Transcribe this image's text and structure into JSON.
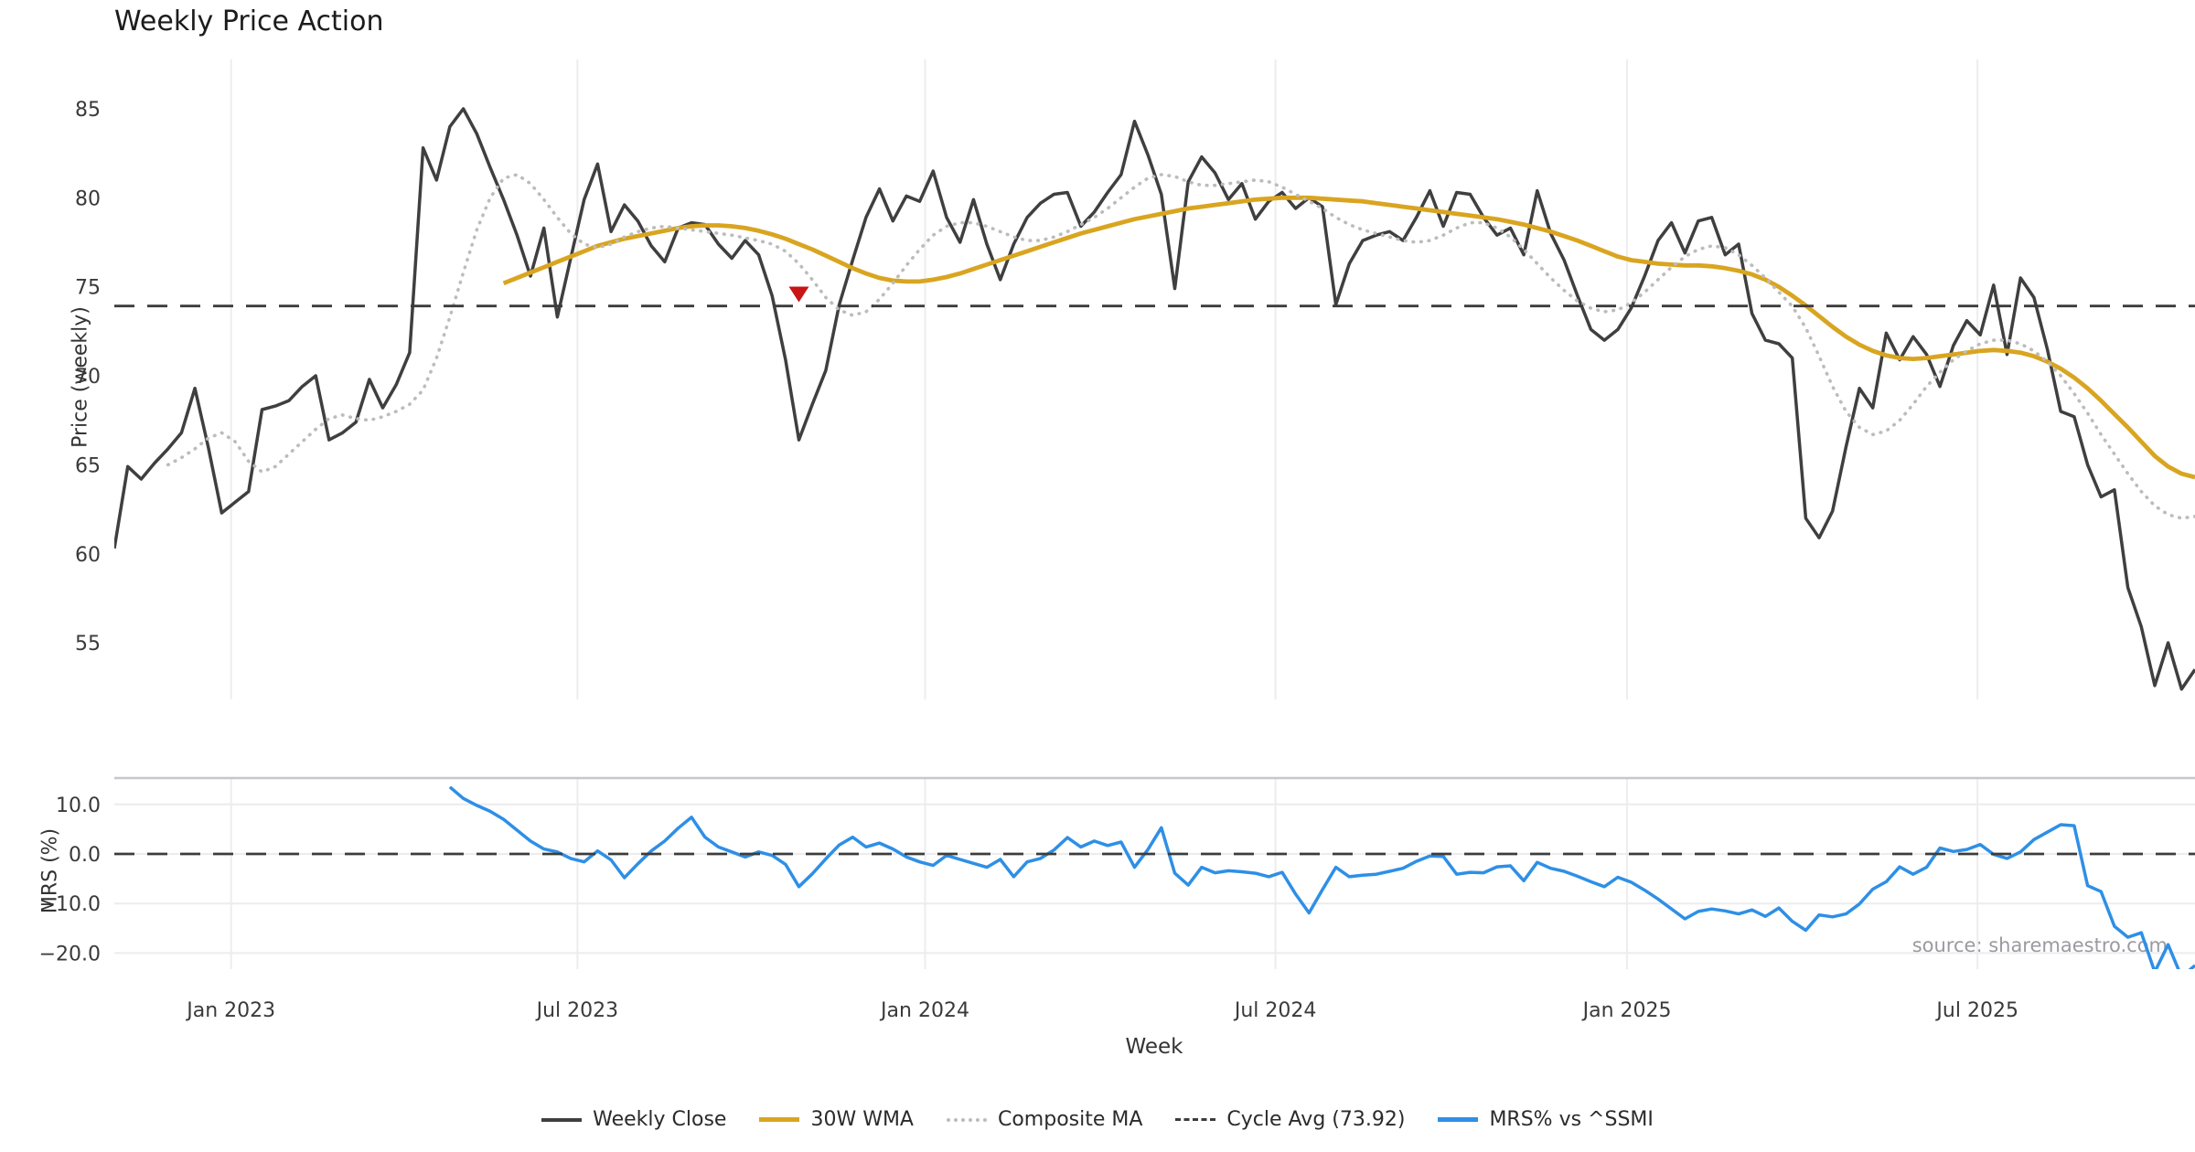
{
  "title": "Weekly Price Action",
  "source_note": "source: sharemaestro.com",
  "axes": {
    "price_label": "Price (weekly)",
    "mrs_label": "MRS (%)",
    "x_label": "Week"
  },
  "legend": [
    {
      "label": "Weekly Close",
      "color": "#3f3f3f",
      "style": "solid",
      "thickness": 4
    },
    {
      "label": "30W WMA",
      "color": "#d9a520",
      "style": "solid",
      "thickness": 5
    },
    {
      "label": "Composite MA",
      "color": "#bcbcbc",
      "style": "dotted",
      "thickness": 4
    },
    {
      "label": "Cycle Avg (73.92)",
      "color": "#3c3c3c",
      "style": "dashed",
      "thickness": 3
    },
    {
      "label": "MRS% vs ^SSMI",
      "color": "#2e8fe6",
      "style": "solid",
      "thickness": 5
    }
  ],
  "chart_data": {
    "type": "line",
    "x_unit": "week_index",
    "total_weeks": 155,
    "x_ticks": [
      {
        "week": 8.7,
        "label": "Jan 2023"
      },
      {
        "week": 34.5,
        "label": "Jul 2023"
      },
      {
        "week": 60.4,
        "label": "Jan 2024"
      },
      {
        "week": 86.5,
        "label": "Jul 2024"
      },
      {
        "week": 112.7,
        "label": "Jan 2025"
      },
      {
        "week": 138.8,
        "label": "Jul 2025"
      }
    ],
    "panels": [
      {
        "name": "price",
        "ylabel": "Price (weekly)",
        "ylim": [
          51.8,
          87.8
        ],
        "yticks": [
          55,
          60,
          65,
          70,
          75,
          80,
          85
        ],
        "ytick_labels": [
          "55",
          "60",
          "65",
          "70",
          "75",
          "80",
          "85"
        ],
        "grid": "vertical-faint"
      },
      {
        "name": "mrs",
        "ylabel": "MRS (%)",
        "ylim": [
          -23.3,
          15.3
        ],
        "yticks": [
          10,
          0,
          -10,
          -20
        ],
        "ytick_labels": [
          "10.0",
          "0.0",
          "−10.0",
          "−20.0"
        ],
        "grid": "both-faint"
      }
    ],
    "series": [
      {
        "name": "Weekly Close",
        "panel": "price",
        "color": "#3f3f3f",
        "style": "solid",
        "start_week": 0,
        "values": [
          60.3,
          64.9,
          64.2,
          65.1,
          65.9,
          66.8,
          69.3,
          66.0,
          62.3,
          62.9,
          63.5,
          68.1,
          68.3,
          68.6,
          69.4,
          70.0,
          66.4,
          66.8,
          67.4,
          69.8,
          68.2,
          69.5,
          71.3,
          82.8,
          81.0,
          84.0,
          85.0,
          83.6,
          81.7,
          79.9,
          77.9,
          75.6,
          78.3,
          73.3,
          76.6,
          79.9,
          81.9,
          78.1,
          79.6,
          78.7,
          77.3,
          76.4,
          78.3,
          78.6,
          78.5,
          77.4,
          76.6,
          77.6,
          76.8,
          74.5,
          70.9,
          66.4,
          68.4,
          70.3,
          74.0,
          76.5,
          78.9,
          80.5,
          78.7,
          80.1,
          79.8,
          81.5,
          78.9,
          77.5,
          79.9,
          77.4,
          75.4,
          77.4,
          78.9,
          79.7,
          80.2,
          80.3,
          78.4,
          79.2,
          80.3,
          81.3,
          84.3,
          82.4,
          80.2,
          74.9,
          80.9,
          82.3,
          81.4,
          79.9,
          80.8,
          78.8,
          79.8,
          80.3,
          79.4,
          80.0,
          79.5,
          74.0,
          76.3,
          77.6,
          77.9,
          78.1,
          77.6,
          78.9,
          80.4,
          78.4,
          80.3,
          80.2,
          78.9,
          77.9,
          78.3,
          76.8,
          80.4,
          78.0,
          76.5,
          74.5,
          72.6,
          72.0,
          72.6,
          73.8,
          75.6,
          77.6,
          78.6,
          76.9,
          78.7,
          78.9,
          76.8,
          77.4,
          73.5,
          72.0,
          71.8,
          71.0,
          62.0,
          60.9,
          62.4,
          66.0,
          69.3,
          68.2,
          72.4,
          70.9,
          72.2,
          71.2,
          69.4,
          71.7,
          73.1,
          72.3,
          75.1,
          71.2,
          75.5,
          74.4,
          71.5,
          68.0,
          67.7,
          65.0,
          63.2,
          63.6,
          58.1,
          55.9,
          52.6,
          55.0,
          52.4,
          53.5
        ]
      },
      {
        "name": "30W WMA",
        "panel": "price",
        "color": "#d9a520",
        "style": "solid",
        "start_week": 29,
        "values": [
          75.2,
          75.5,
          75.8,
          76.1,
          76.4,
          76.7,
          77.0,
          77.3,
          77.5,
          77.7,
          77.85,
          78.0,
          78.15,
          78.3,
          78.4,
          78.45,
          78.45,
          78.4,
          78.3,
          78.15,
          77.95,
          77.7,
          77.4,
          77.1,
          76.75,
          76.4,
          76.05,
          75.75,
          75.5,
          75.35,
          75.3,
          75.3,
          75.4,
          75.55,
          75.75,
          76.0,
          76.25,
          76.5,
          76.75,
          77.0,
          77.25,
          77.5,
          77.75,
          78.0,
          78.2,
          78.4,
          78.6,
          78.8,
          78.95,
          79.1,
          79.25,
          79.4,
          79.5,
          79.6,
          79.7,
          79.8,
          79.9,
          79.95,
          80.0,
          80.0,
          80.0,
          79.95,
          79.9,
          79.85,
          79.8,
          79.7,
          79.6,
          79.5,
          79.4,
          79.3,
          79.2,
          79.1,
          79.0,
          78.9,
          78.8,
          78.65,
          78.5,
          78.3,
          78.1,
          77.85,
          77.6,
          77.3,
          77.0,
          76.7,
          76.5,
          76.4,
          76.3,
          76.25,
          76.2,
          76.2,
          76.15,
          76.05,
          75.9,
          75.7,
          75.4,
          75.0,
          74.5,
          73.95,
          73.35,
          72.75,
          72.2,
          71.75,
          71.4,
          71.15,
          71.0,
          70.95,
          71.0,
          71.1,
          71.2,
          71.3,
          71.4,
          71.45,
          71.4,
          71.3,
          71.1,
          70.8,
          70.4,
          69.9,
          69.3,
          68.6,
          67.85,
          67.1,
          66.3,
          65.5,
          64.9,
          64.5,
          64.3
        ]
      },
      {
        "name": "Composite MA",
        "panel": "price",
        "color": "#bcbcbc",
        "style": "dotted",
        "start_week": 4,
        "values": [
          65.0,
          65.4,
          65.9,
          66.5,
          66.8,
          66.3,
          65.2,
          64.6,
          64.9,
          65.6,
          66.3,
          67.0,
          67.6,
          67.8,
          67.6,
          67.5,
          67.7,
          68.0,
          68.4,
          69.2,
          71.0,
          73.3,
          75.8,
          78.2,
          80.0,
          81.1,
          81.3,
          80.8,
          79.9,
          78.9,
          78.0,
          77.4,
          77.2,
          77.4,
          77.8,
          78.1,
          78.3,
          78.4,
          78.3,
          78.2,
          78.1,
          78.0,
          77.9,
          77.75,
          77.6,
          77.4,
          77.0,
          76.3,
          75.4,
          74.4,
          73.7,
          73.4,
          73.6,
          74.3,
          75.2,
          76.2,
          77.1,
          77.9,
          78.4,
          78.6,
          78.6,
          78.4,
          78.1,
          77.8,
          77.6,
          77.6,
          77.8,
          78.1,
          78.5,
          78.9,
          79.4,
          80.0,
          80.6,
          81.1,
          81.3,
          81.2,
          80.9,
          80.7,
          80.7,
          80.8,
          80.9,
          81.0,
          80.9,
          80.6,
          80.2,
          79.8,
          79.4,
          78.9,
          78.5,
          78.2,
          78.0,
          77.8,
          77.6,
          77.5,
          77.6,
          77.9,
          78.3,
          78.6,
          78.6,
          78.3,
          77.8,
          77.1,
          76.3,
          75.5,
          74.8,
          74.2,
          73.8,
          73.6,
          73.7,
          74.1,
          74.7,
          75.4,
          76.1,
          76.7,
          77.1,
          77.3,
          77.2,
          76.8,
          76.2,
          75.5,
          74.7,
          73.9,
          72.7,
          71.1,
          69.4,
          68.0,
          67.1,
          66.7,
          66.9,
          67.5,
          68.4,
          69.4,
          70.2,
          70.9,
          71.4,
          71.8,
          72.0,
          72.0,
          71.8,
          71.4,
          70.8,
          70.0,
          69.0,
          67.9,
          66.7,
          65.6,
          64.5,
          63.5,
          62.7,
          62.2,
          62.0,
          62.1
        ]
      },
      {
        "name": "Cycle Avg",
        "panel": "price",
        "color": "#3c3c3c",
        "style": "dashed",
        "constant": 73.92
      },
      {
        "name": "MRS% vs ^SSMI",
        "panel": "mrs",
        "color": "#2e8fe6",
        "style": "solid",
        "start_week": 25,
        "values": [
          13.5,
          11.2,
          9.8,
          8.6,
          7.0,
          4.8,
          2.6,
          1.0,
          0.4,
          -0.9,
          -1.6,
          0.6,
          -1.2,
          -4.8,
          -2.0,
          0.6,
          2.6,
          5.2,
          7.4,
          3.4,
          1.4,
          0.4,
          -0.6,
          0.4,
          -0.3,
          -2.1,
          -6.6,
          -4.0,
          -1.0,
          1.8,
          3.4,
          1.4,
          2.2,
          1.0,
          -0.6,
          -1.6,
          -2.3,
          -0.3,
          -1.1,
          -1.9,
          -2.7,
          -1.1,
          -4.6,
          -1.6,
          -0.9,
          0.8,
          3.3,
          1.4,
          2.6,
          1.7,
          2.4,
          -2.7,
          0.9,
          5.3,
          -3.9,
          -6.3,
          -2.7,
          -3.8,
          -3.4,
          -3.6,
          -3.9,
          -4.6,
          -3.7,
          -8.1,
          -11.9,
          -7.2,
          -2.7,
          -4.6,
          -4.3,
          -4.1,
          -3.5,
          -2.9,
          -1.5,
          -0.4,
          -0.5,
          -4.1,
          -3.7,
          -3.8,
          -2.6,
          -2.4,
          -5.4,
          -1.7,
          -2.9,
          -3.5,
          -4.5,
          -5.6,
          -6.6,
          -4.7,
          -5.7,
          -7.3,
          -9.1,
          -11.1,
          -13.1,
          -11.6,
          -11.1,
          -11.5,
          -12.1,
          -11.3,
          -12.6,
          -10.9,
          -13.6,
          -15.4,
          -12.3,
          -12.7,
          -12.1,
          -10.1,
          -7.1,
          -5.6,
          -2.6,
          -4.1,
          -2.7,
          1.2,
          0.5,
          0.9,
          1.9,
          -0.1,
          -0.9,
          0.4,
          2.9,
          4.4,
          5.9,
          5.7,
          -6.4,
          -7.6,
          -14.6,
          -16.8,
          -15.9,
          -23.8,
          -18.3,
          -24.8,
          -22.5
        ]
      },
      {
        "name": "MRS Zero Line",
        "panel": "mrs",
        "color": "#3c3c3c",
        "style": "dashed",
        "constant": 0
      }
    ],
    "markers": [
      {
        "type": "triangle-down",
        "week": 51,
        "price": 74.6,
        "color": "#c81515",
        "panel": "price"
      }
    ]
  }
}
